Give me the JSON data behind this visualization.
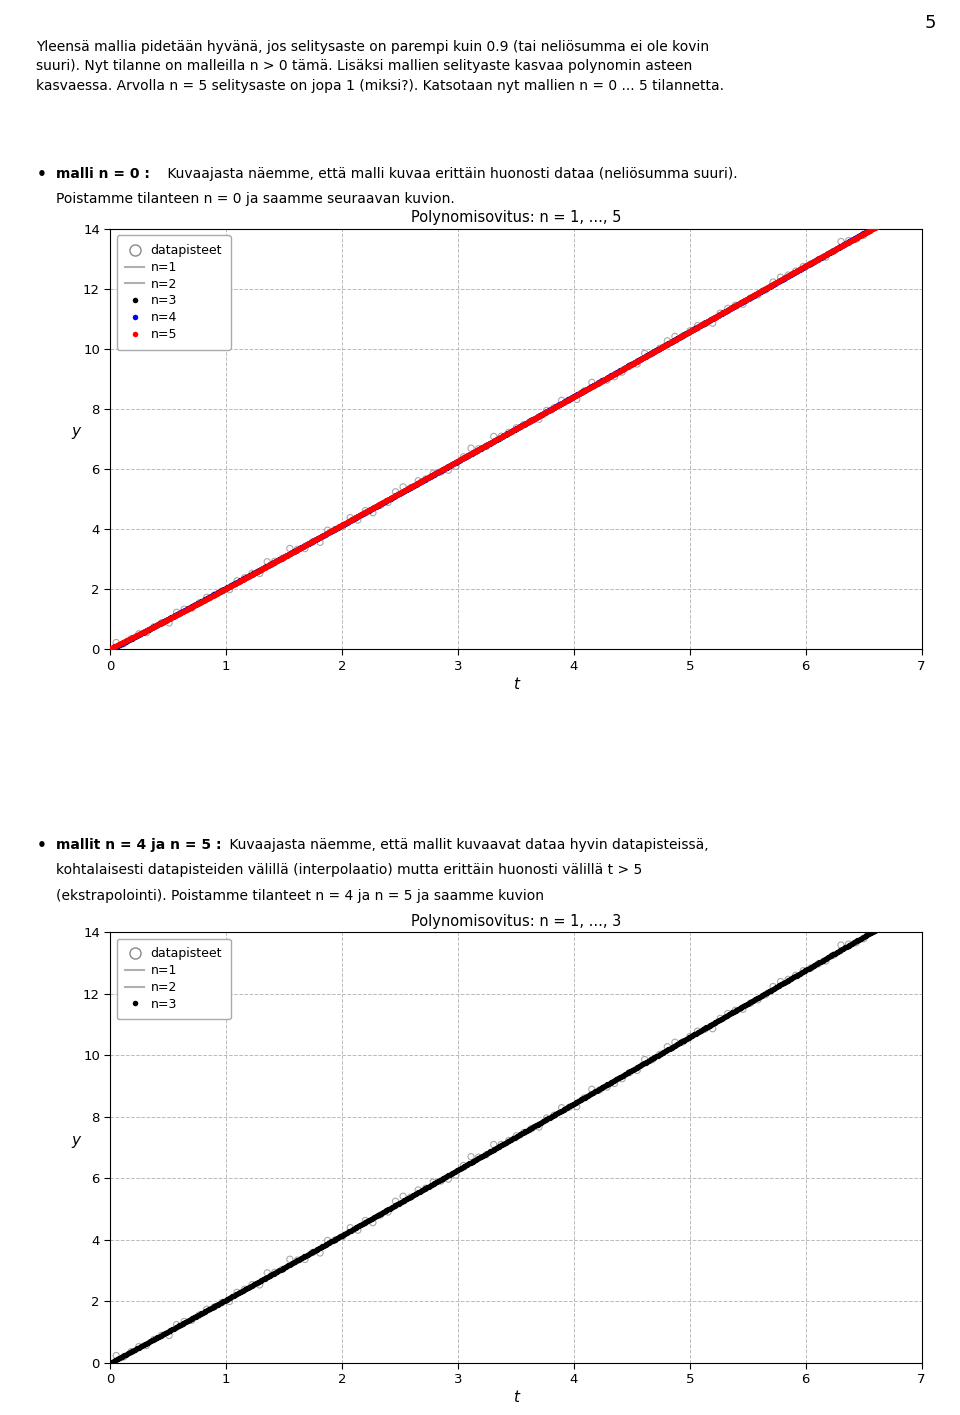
{
  "page_number": "5",
  "plot1_title": "Polynomisovitus: n = 1, ..., 5",
  "plot1_xlabel": "t",
  "plot1_ylabel": "y",
  "plot1_xlim": [
    0,
    7
  ],
  "plot1_ylim": [
    0,
    14
  ],
  "plot1_xticks": [
    0,
    1,
    2,
    3,
    4,
    5,
    6,
    7
  ],
  "plot1_yticks": [
    0,
    2,
    4,
    6,
    8,
    10,
    12,
    14
  ],
  "plot2_title": "Polynomisovitus: n = 1, ..., 3",
  "plot2_xlabel": "t",
  "plot2_ylabel": "y",
  "plot2_xlim": [
    0,
    7
  ],
  "plot2_ylim": [
    0,
    14
  ],
  "plot2_xticks": [
    0,
    1,
    2,
    3,
    4,
    5,
    6,
    7
  ],
  "plot2_yticks": [
    0,
    2,
    4,
    6,
    8,
    10,
    12,
    14
  ],
  "color_n1": "#b0b0b0",
  "color_n2": "#b0b0b0",
  "color_n3": "#000000",
  "color_n4": "#0000ff",
  "color_n5": "#ff0000",
  "color_data": "#888888",
  "bg_color": "#ffffff",
  "grid_color": "#bbbbbb"
}
